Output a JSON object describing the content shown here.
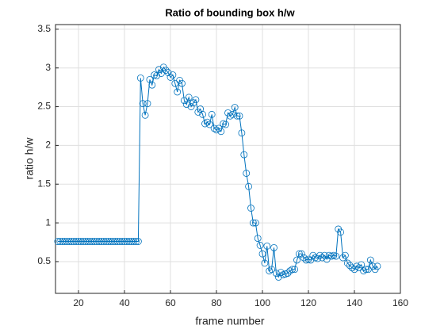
{
  "chart_data": {
    "type": "line",
    "title": "Ratio of bounding box h/w",
    "x_label": "frame number",
    "y_label": "ratio h/w",
    "x": [
      11,
      12,
      13,
      14,
      15,
      16,
      17,
      18,
      19,
      20,
      21,
      22,
      23,
      24,
      25,
      26,
      27,
      28,
      29,
      30,
      31,
      32,
      33,
      34,
      35,
      36,
      37,
      38,
      39,
      40,
      41,
      42,
      43,
      44,
      45,
      46,
      47,
      48,
      49,
      50,
      51,
      52,
      53,
      54,
      55,
      56,
      57,
      58,
      59,
      60,
      61,
      62,
      63,
      64,
      65,
      66,
      67,
      68,
      69,
      70,
      71,
      72,
      73,
      74,
      75,
      76,
      77,
      78,
      79,
      80,
      81,
      82,
      83,
      84,
      85,
      86,
      87,
      88,
      89,
      90,
      91,
      92,
      93,
      94,
      95,
      96,
      97,
      98,
      99,
      100,
      101,
      102,
      103,
      104,
      105,
      106,
      107,
      108,
      109,
      110,
      111,
      112,
      113,
      114,
      115,
      116,
      117,
      118,
      119,
      120,
      121,
      122,
      123,
      124,
      125,
      126,
      127,
      128,
      129,
      130,
      131,
      132,
      133,
      134,
      135,
      136,
      137,
      138,
      139,
      140,
      141,
      142,
      143,
      144,
      145,
      146,
      147,
      148,
      149,
      150
    ],
    "series": [
      {
        "name": "ratio",
        "color": "#0072bd",
        "values": [
          0.76,
          0.76,
          0.76,
          0.76,
          0.76,
          0.76,
          0.76,
          0.76,
          0.76,
          0.76,
          0.76,
          0.76,
          0.76,
          0.76,
          0.76,
          0.76,
          0.76,
          0.76,
          0.76,
          0.76,
          0.76,
          0.76,
          0.76,
          0.76,
          0.76,
          0.76,
          0.76,
          0.76,
          0.76,
          0.76,
          0.76,
          0.76,
          0.76,
          0.76,
          0.76,
          0.76,
          2.87,
          2.54,
          2.39,
          2.54,
          2.85,
          2.78,
          2.91,
          2.9,
          2.98,
          2.93,
          3.01,
          2.97,
          2.94,
          2.88,
          2.91,
          2.8,
          2.69,
          2.84,
          2.8,
          2.58,
          2.53,
          2.62,
          2.5,
          2.55,
          2.59,
          2.43,
          2.47,
          2.4,
          2.28,
          2.3,
          2.27,
          2.4,
          2.22,
          2.2,
          2.22,
          2.18,
          2.28,
          2.27,
          2.42,
          2.38,
          2.4,
          2.49,
          2.38,
          2.38,
          2.16,
          1.88,
          1.64,
          1.47,
          1.19,
          1.0,
          1.0,
          0.8,
          0.71,
          0.6,
          0.48,
          0.7,
          0.38,
          0.4,
          0.68,
          0.35,
          0.3,
          0.36,
          0.33,
          0.34,
          0.35,
          0.38,
          0.4,
          0.4,
          0.52,
          0.6,
          0.6,
          0.55,
          0.52,
          0.53,
          0.52,
          0.58,
          0.55,
          0.54,
          0.58,
          0.55,
          0.58,
          0.53,
          0.58,
          0.57,
          0.58,
          0.57,
          0.92,
          0.88,
          0.55,
          0.58,
          0.48,
          0.45,
          0.42,
          0.4,
          0.44,
          0.42,
          0.46,
          0.38,
          0.4,
          0.4,
          0.52,
          0.44,
          0.4,
          0.44
        ]
      }
    ],
    "xlim": [
      10,
      160
    ],
    "ylim": [
      0.09,
      3.56
    ],
    "xticks": [
      20,
      40,
      60,
      80,
      100,
      120,
      140,
      160
    ],
    "yticks": [
      0.5,
      1,
      1.5,
      2,
      2.5,
      3,
      3.5
    ],
    "grid": true,
    "markers": "circle"
  }
}
